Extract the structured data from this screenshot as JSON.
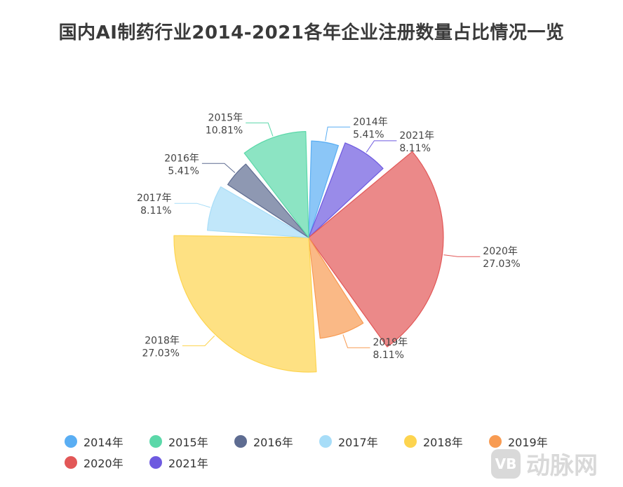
{
  "page": {
    "title": "国内AI制药行业2014-2021各年企业注册数量占比情况一览"
  },
  "chart_data": {
    "type": "pie",
    "subtype": "rose",
    "title": "国内AI制药行业2014-2021各年企业注册数量占比情况一览",
    "unit": "%",
    "legend_position": "bottom",
    "slices": [
      {
        "name": "2014年",
        "label": "5.41%",
        "value": 5.41,
        "color": "#5aaef3"
      },
      {
        "name": "2021年",
        "label": "8.11%",
        "value": 8.11,
        "color": "#6e5ae0"
      },
      {
        "name": "2020年",
        "label": "27.03%",
        "value": 27.03,
        "color": "#e25757"
      },
      {
        "name": "2019年",
        "label": "8.11%",
        "value": 8.11,
        "color": "#f89b52"
      },
      {
        "name": "2018年",
        "label": "27.03%",
        "value": 27.03,
        "color": "#fdd44f"
      },
      {
        "name": "2017年",
        "label": "8.11%",
        "value": 8.11,
        "color": "#a7ddf8"
      },
      {
        "name": "2016年",
        "label": "5.41%",
        "value": 5.41,
        "color": "#5e6c91"
      },
      {
        "name": "2015年",
        "label": "10.81%",
        "value": 10.81,
        "color": "#5bd8a9"
      }
    ],
    "legend": [
      "2014年",
      "2015年",
      "2016年",
      "2017年",
      "2018年",
      "2019年",
      "2020年",
      "2021年"
    ]
  },
  "watermark": {
    "logo_text": "VB",
    "brand_text": "动脉网"
  }
}
